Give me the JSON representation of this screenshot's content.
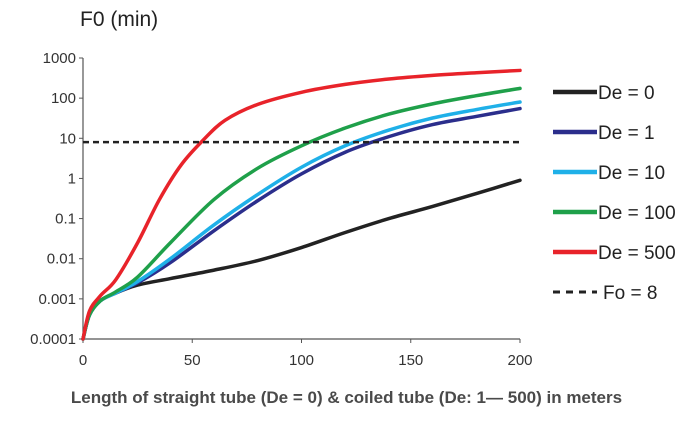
{
  "chart_data": {
    "type": "line",
    "title": "",
    "ylabel": "F0 (min)",
    "xlabel": "Length of straight tube (De = 0) & coiled tube (De: 1— 500) in meters",
    "y_scale": "log",
    "xlim": [
      0,
      200
    ],
    "ylim": [
      0.0001,
      1000
    ],
    "x_ticks": [
      "0",
      "50",
      "100",
      "150",
      "200"
    ],
    "x_tick_values": [
      0,
      50,
      100,
      150,
      200
    ],
    "y_ticks": [
      "0.0001",
      "0.001",
      "0.01",
      "0.1",
      "1",
      "10",
      "100",
      "1000"
    ],
    "y_tick_values": [
      0.0001,
      0.001,
      0.01,
      0.1,
      1,
      10,
      100,
      1000
    ],
    "grid": false,
    "legend_position": "right",
    "series": [
      {
        "name": "De = 0",
        "color": "#222222",
        "style": "solid",
        "points": [
          [
            0,
            0.0001
          ],
          [
            3,
            0.0004
          ],
          [
            8,
            0.0009
          ],
          [
            15,
            0.0014
          ],
          [
            25,
            0.0022
          ],
          [
            40,
            0.0032
          ],
          [
            60,
            0.0052
          ],
          [
            80,
            0.009
          ],
          [
            100,
            0.019
          ],
          [
            120,
            0.045
          ],
          [
            140,
            0.1
          ],
          [
            160,
            0.2
          ],
          [
            180,
            0.42
          ],
          [
            200,
            0.9
          ]
        ]
      },
      {
        "name": "De = 1",
        "color": "#2b2e8c",
        "style": "solid",
        "points": [
          [
            0,
            0.0001
          ],
          [
            3,
            0.0004
          ],
          [
            8,
            0.0009
          ],
          [
            15,
            0.0014
          ],
          [
            25,
            0.0025
          ],
          [
            40,
            0.008
          ],
          [
            60,
            0.05
          ],
          [
            80,
            0.28
          ],
          [
            100,
            1.3
          ],
          [
            120,
            4.5
          ],
          [
            140,
            11
          ],
          [
            160,
            22
          ],
          [
            180,
            35
          ],
          [
            200,
            55
          ]
        ]
      },
      {
        "name": "De = 10",
        "color": "#1fb0e8",
        "style": "solid",
        "points": [
          [
            0,
            0.0001
          ],
          [
            3,
            0.0004
          ],
          [
            8,
            0.0009
          ],
          [
            15,
            0.0014
          ],
          [
            25,
            0.0027
          ],
          [
            40,
            0.01
          ],
          [
            60,
            0.07
          ],
          [
            80,
            0.4
          ],
          [
            100,
            1.9
          ],
          [
            120,
            6.5
          ],
          [
            140,
            16
          ],
          [
            160,
            32
          ],
          [
            180,
            52
          ],
          [
            200,
            80
          ]
        ]
      },
      {
        "name": "De = 100",
        "color": "#1fa04a",
        "style": "solid",
        "points": [
          [
            0,
            0.0001
          ],
          [
            3,
            0.0004
          ],
          [
            8,
            0.0009
          ],
          [
            15,
            0.0015
          ],
          [
            25,
            0.0035
          ],
          [
            40,
            0.025
          ],
          [
            60,
            0.3
          ],
          [
            80,
            1.8
          ],
          [
            100,
            6.5
          ],
          [
            120,
            18
          ],
          [
            140,
            40
          ],
          [
            160,
            72
          ],
          [
            180,
            115
          ],
          [
            200,
            175
          ]
        ]
      },
      {
        "name": "De = 500",
        "color": "#e8232a",
        "style": "solid",
        "points": [
          [
            0,
            0.0001
          ],
          [
            3,
            0.0005
          ],
          [
            8,
            0.0012
          ],
          [
            15,
            0.003
          ],
          [
            25,
            0.025
          ],
          [
            35,
            0.3
          ],
          [
            45,
            2.2
          ],
          [
            55,
            9
          ],
          [
            65,
            28
          ],
          [
            80,
            70
          ],
          [
            100,
            140
          ],
          [
            120,
            220
          ],
          [
            140,
            300
          ],
          [
            160,
            370
          ],
          [
            180,
            430
          ],
          [
            200,
            490
          ]
        ]
      },
      {
        "name": "Fo = 8",
        "color": "#222222",
        "style": "dashed",
        "points": [
          [
            0,
            8
          ],
          [
            200,
            8
          ]
        ]
      }
    ]
  }
}
